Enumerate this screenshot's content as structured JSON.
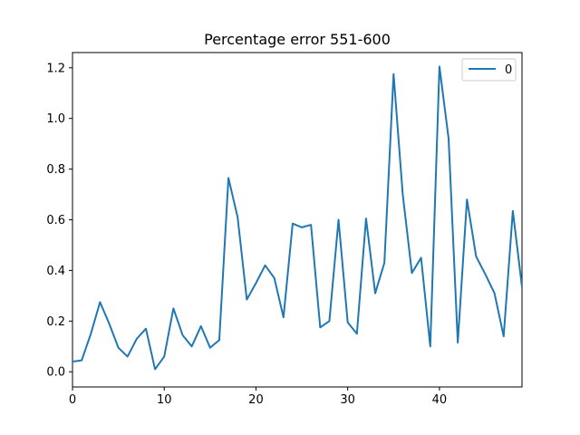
{
  "chart_data": {
    "type": "line",
    "title": "Percentage error 551-600",
    "xlabel": "",
    "ylabel": "",
    "xlim": [
      0,
      49
    ],
    "ylim": [
      -0.06,
      1.26
    ],
    "x_ticks": [
      "0",
      "10",
      "20",
      "30",
      "40"
    ],
    "y_ticks": [
      "0.0",
      "0.2",
      "0.4",
      "0.6",
      "0.8",
      "1.0",
      "1.2"
    ],
    "grid": false,
    "legend_placement": "top-right",
    "series": [
      {
        "name": "0",
        "color": "#1f77b4",
        "x": [
          0,
          1,
          2,
          3,
          4,
          5,
          6,
          7,
          8,
          9,
          10,
          11,
          12,
          13,
          14,
          15,
          16,
          17,
          18,
          19,
          20,
          21,
          22,
          23,
          24,
          25,
          26,
          27,
          28,
          29,
          30,
          31,
          32,
          33,
          34,
          35,
          36,
          37,
          38,
          39,
          40,
          41,
          42,
          43,
          44,
          45,
          46,
          47,
          48,
          49
        ],
        "values": [
          0.04,
          0.045,
          0.15,
          0.275,
          0.19,
          0.095,
          0.06,
          0.13,
          0.17,
          0.01,
          0.06,
          0.25,
          0.145,
          0.1,
          0.18,
          0.095,
          0.125,
          0.765,
          0.61,
          0.285,
          0.35,
          0.42,
          0.37,
          0.215,
          0.585,
          0.57,
          0.58,
          0.175,
          0.2,
          0.6,
          0.195,
          0.15,
          0.605,
          0.31,
          0.43,
          1.175,
          0.7,
          0.39,
          0.45,
          0.1,
          1.205,
          0.92,
          0.115,
          0.68,
          0.455,
          0.385,
          0.31,
          0.14,
          0.635,
          0.335
        ]
      }
    ]
  }
}
